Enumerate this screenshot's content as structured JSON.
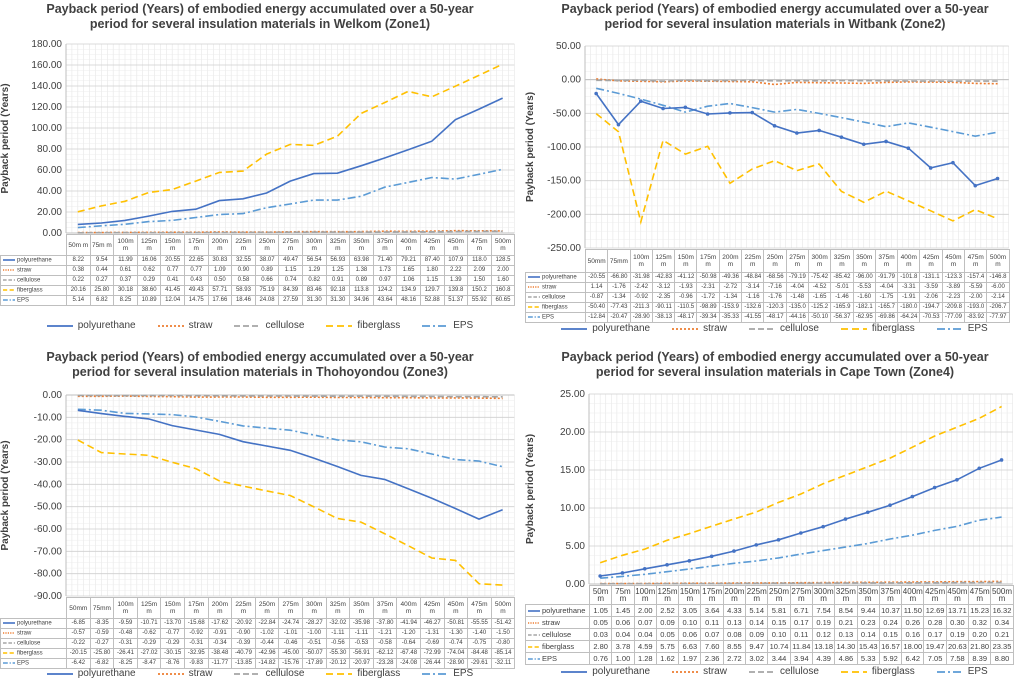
{
  "colors": {
    "polyurethane": "#4472c4",
    "straw": "#ed7d31",
    "cellulose": "#a5a5a5",
    "fiberglass": "#ffc000",
    "EPS": "#5b9bd5"
  },
  "charts": [
    {
      "title": "Payback period (Years) of embodied energy accumulated over a 50-year period for several insulation materials in Welkom (Zone1)",
      "ylabel": "Payback period (Years)",
      "ylim": [
        0,
        180
      ],
      "ticks": [
        "0.00",
        "20.00",
        "40.00",
        "60.00",
        "80.00",
        "100.00",
        "120.00",
        "140.00",
        "160.00",
        "180.00"
      ],
      "categories": [
        "50m m",
        "75m m",
        "100m m",
        "125m m",
        "150m m",
        "175m m",
        "200m m",
        "225m m",
        "250m m",
        "275m m",
        "300m m",
        "325m m",
        "350m m",
        "375m m",
        "400m m",
        "425m m",
        "450m m",
        "475m m",
        "500m m"
      ],
      "series": [
        {
          "name": "polyurethane",
          "dash": "",
          "vals": [
            "8.22",
            "9.54",
            "11.99",
            "16.06",
            "20.55",
            "22.65",
            "30.83",
            "32.55",
            "38.07",
            "49.47",
            "56.54",
            "56.93",
            "63.98",
            "71.40",
            "79.21",
            "87.40",
            "107.9",
            "118.0",
            "128.5"
          ]
        },
        {
          "name": "straw",
          "dash": "2,2",
          "vals": [
            "0.38",
            "0.44",
            "0.61",
            "0.62",
            "0.77",
            "0.77",
            "1.09",
            "0.90",
            "0.89",
            "1.15",
            "1.29",
            "1.25",
            "1.38",
            "1.73",
            "1.65",
            "1.80",
            "2.22",
            "2.09",
            "2.00"
          ]
        },
        {
          "name": "cellulose",
          "dash": "6,3",
          "vals": [
            "0.22",
            "0.27",
            "0.37",
            "0.29",
            "0.41",
            "0.43",
            "0.50",
            "0.58",
            "0.66",
            "0.74",
            "0.82",
            "0.91",
            "0.89",
            "0.97",
            "1.06",
            "1.15",
            "1.39",
            "1.50",
            "1.60"
          ]
        },
        {
          "name": "fiberglass",
          "dash": "7,4",
          "vals": [
            "20.16",
            "25.80",
            "30.18",
            "38.60",
            "41.45",
            "49.43",
            "57.71",
            "58.93",
            "75.19",
            "84.39",
            "83.46",
            "92.18",
            "113.8",
            "124.2",
            "134.9",
            "129.7",
            "139.8",
            "150.2",
            "160.8"
          ]
        },
        {
          "name": "EPS",
          "dash": "8,3,2,3",
          "vals": [
            "5.14",
            "6.82",
            "8.25",
            "10.89",
            "12.04",
            "14.75",
            "17.66",
            "18.46",
            "24.08",
            "27.59",
            "31.30",
            "31.30",
            "34.96",
            "43.64",
            "48.16",
            "52.88",
            "51.37",
            "55.92",
            "60.65"
          ]
        }
      ]
    },
    {
      "title": "Payback period (Years) of embodied energy accumulated over a 50-year period for several insulation materials in Witbank (Zone2)",
      "ylabel": "Payback period (Years)",
      "ylim": [
        -250,
        50
      ],
      "ticks": [
        "-250.00",
        "-200.00",
        "-150.00",
        "-100.00",
        "-50.00",
        "0.00",
        "50.00"
      ],
      "categories": [
        "50mm",
        "75mm",
        "100m m",
        "125m m",
        "150m m",
        "175m m",
        "200m m",
        "225m m",
        "250m m",
        "275m m",
        "300m m",
        "325m m",
        "350m m",
        "375m m",
        "400m m",
        "425m m",
        "450m m",
        "475m m",
        "500m m"
      ],
      "series": [
        {
          "name": "polyurethane",
          "dash": "",
          "vals": [
            "-20.55",
            "-66.80",
            "-31.98",
            "-42.83",
            "-41.12",
            "-50.98",
            "-49.36",
            "-48.84",
            "-68.56",
            "-79.19",
            "-75.42",
            "-85.42",
            "-96.00",
            "-91.79",
            "-101.8",
            "-131.1",
            "-123.3",
            "-157.4",
            "-146.8"
          ]
        },
        {
          "name": "straw",
          "dash": "2,2",
          "vals": [
            "1.14",
            "-1.76",
            "-2.42",
            "-3.12",
            "-1.93",
            "-2.31",
            "-2.72",
            "-3.14",
            "-7.16",
            "-4.04",
            "-4.52",
            "-5.01",
            "-5.53",
            "-4.04",
            "-3.31",
            "-3.59",
            "-3.89",
            "-5.59",
            "-6.00"
          ]
        },
        {
          "name": "cellulose",
          "dash": "6,3",
          "vals": [
            "-0.87",
            "-1.34",
            "-0.92",
            "-2.35",
            "-0.96",
            "-1.72",
            "-1.34",
            "-1.16",
            "-1.76",
            "-1.48",
            "-1.65",
            "-1.46",
            "-1.60",
            "-1.75",
            "-1.91",
            "-2.06",
            "-2.23",
            "-2.00",
            "-2.14"
          ]
        },
        {
          "name": "fiberglass",
          "dash": "7,4",
          "vals": [
            "-50.40",
            "-77.43",
            "-211.3",
            "-90.11",
            "-110.5",
            "-98.89",
            "-153.9",
            "-132.6",
            "-120.3",
            "-135.0",
            "-125.2",
            "-165.9",
            "-182.1",
            "-165.7",
            "-180.0",
            "-194.7",
            "-209.8",
            "-193.0",
            "-206.7"
          ]
        },
        {
          "name": "EPS",
          "dash": "8,3,2,3",
          "vals": [
            "-12.84",
            "-20.47",
            "-28.90",
            "-38.13",
            "-48.17",
            "-39.34",
            "-35.33",
            "-41.55",
            "-48.17",
            "-44.16",
            "-50.10",
            "-56.37",
            "-62.95",
            "-69.86",
            "-64.24",
            "-70.53",
            "-77.09",
            "-83.92",
            "-77.97"
          ]
        }
      ]
    },
    {
      "title": "Payback period (Years) of embodied energy accumulated over a 50-year period for several insulation materials in Thohoyondou (Zone3)",
      "ylabel": "Payback period (Years)",
      "ylim": [
        -90,
        0
      ],
      "ticks": [
        "-90.00",
        "-80.00",
        "-70.00",
        "-60.00",
        "-50.00",
        "-40.00",
        "-30.00",
        "-20.00",
        "-10.00",
        "0.00"
      ],
      "categories": [
        "50mm",
        "75mm",
        "100m m",
        "125m m",
        "150m m",
        "175m m",
        "200m m",
        "225m m",
        "250m m",
        "275m m",
        "300m m",
        "325m m",
        "350m m",
        "375m m",
        "400m m",
        "425m m",
        "450m m",
        "475m m",
        "500m m"
      ],
      "series": [
        {
          "name": "polyurethane",
          "dash": "",
          "vals": [
            "-6.85",
            "-8.35",
            "-9.59",
            "-10.71",
            "-13.70",
            "-15.68",
            "-17.62",
            "-20.92",
            "-22.84",
            "-24.74",
            "-28.27",
            "-32.02",
            "-35.98",
            "-37.80",
            "-41.94",
            "-46.27",
            "-50.81",
            "-55.55",
            "-51.42"
          ]
        },
        {
          "name": "straw",
          "dash": "2,2",
          "vals": [
            "-0.57",
            "-0.59",
            "-0.48",
            "-0.62",
            "-0.77",
            "-0.92",
            "-0.91",
            "-0.90",
            "-1.02",
            "-1.01",
            "-1.00",
            "-1.11",
            "-1.11",
            "-1.21",
            "-1.20",
            "-1.31",
            "-1.30",
            "-1.40",
            "-1.50"
          ]
        },
        {
          "name": "cellulose",
          "dash": "6,3",
          "vals": [
            "-0.22",
            "-0.27",
            "-0.31",
            "-0.29",
            "-0.29",
            "-0.31",
            "-0.34",
            "-0.39",
            "-0.44",
            "-0.46",
            "-0.51",
            "-0.56",
            "-0.53",
            "-0.58",
            "-0.64",
            "-0.69",
            "-0.74",
            "-0.75",
            "-0.80"
          ]
        },
        {
          "name": "fiberglass",
          "dash": "7,4",
          "vals": [
            "-20.15",
            "-25.80",
            "-26.41",
            "-27.02",
            "-30.15",
            "-32.95",
            "-38.48",
            "-40.79",
            "-42.96",
            "-45.00",
            "-50.07",
            "-55.30",
            "-56.91",
            "-62.12",
            "-67.48",
            "-72.99",
            "-74.04",
            "-84.48",
            "-85.14"
          ]
        },
        {
          "name": "EPS",
          "dash": "8,3,2,3",
          "vals": [
            "-6.42",
            "-6.82",
            "-8.25",
            "-8.47",
            "-8.76",
            "-9.83",
            "-11.77",
            "-13.85",
            "-14.82",
            "-15.76",
            "-17.89",
            "-20.12",
            "-20.97",
            "-23.28",
            "-24.08",
            "-26.44",
            "-28.90",
            "-29.61",
            "-32.11"
          ]
        }
      ]
    },
    {
      "title": "Payback period (Years) of embodied energy accumulated over a 50-year period for several insulation materials in Cape Town (Zone4)",
      "ylabel": "Payback period (Years)",
      "ylim": [
        0,
        25
      ],
      "ticks": [
        "0.00",
        "5.00",
        "10.00",
        "15.00",
        "20.00",
        "25.00"
      ],
      "categories": [
        "50m m",
        "75m m",
        "100m m",
        "125m m",
        "150m m",
        "175m m",
        "200m m",
        "225m m",
        "250m m",
        "275m m",
        "300m m",
        "325m m",
        "350m m",
        "375m m",
        "400m m",
        "425m m",
        "450m m",
        "475m m",
        "500m m"
      ],
      "series": [
        {
          "name": "polyurethane",
          "dash": "",
          "vals": [
            "1.05",
            "1.45",
            "2.00",
            "2.52",
            "3.05",
            "3.64",
            "4.33",
            "5.14",
            "5.81",
            "6.71",
            "7.54",
            "8.54",
            "9.44",
            "10.37",
            "11.50",
            "12.69",
            "13.71",
            "15.23",
            "16.32"
          ]
        },
        {
          "name": "straw",
          "dash": "2,2",
          "vals": [
            "0.05",
            "0.06",
            "0.07",
            "0.09",
            "0.10",
            "0.11",
            "0.13",
            "0.14",
            "0.15",
            "0.17",
            "0.19",
            "0.21",
            "0.23",
            "0.24",
            "0.26",
            "0.28",
            "0.30",
            "0.32",
            "0.34"
          ]
        },
        {
          "name": "cellulose",
          "dash": "6,3",
          "vals": [
            "0.03",
            "0.04",
            "0.04",
            "0.05",
            "0.06",
            "0.07",
            "0.08",
            "0.09",
            "0.10",
            "0.11",
            "0.12",
            "0.13",
            "0.14",
            "0.15",
            "0.16",
            "0.17",
            "0.19",
            "0.20",
            "0.21"
          ]
        },
        {
          "name": "fiberglass",
          "dash": "7,4",
          "vals": [
            "2.80",
            "3.78",
            "4.59",
            "5.75",
            "6.63",
            "7.60",
            "8.55",
            "9.47",
            "10.74",
            "11.84",
            "13.18",
            "14.30",
            "15.43",
            "16.57",
            "18.00",
            "19.47",
            "20.63",
            "21.80",
            "23.35"
          ]
        },
        {
          "name": "EPS",
          "dash": "8,3,2,3",
          "vals": [
            "0.76",
            "1.00",
            "1.28",
            "1.62",
            "1.97",
            "2.36",
            "2.72",
            "3.02",
            "3.44",
            "3.94",
            "4.39",
            "4.86",
            "5.33",
            "5.92",
            "6.42",
            "7.05",
            "7.58",
            "8.39",
            "8.80"
          ]
        }
      ]
    }
  ],
  "chart_data": [
    {
      "type": "line",
      "title": "Payback period (Years) of embodied energy accumulated over a 50-year period for several insulation materials in Welkom (Zone1)",
      "ylabel": "Payback period (Years)",
      "xlabel": "",
      "ylim": [
        0,
        180
      ],
      "series_ref": "charts.0"
    },
    {
      "type": "line",
      "title": "Payback period (Years) of embodied energy accumulated over a 50-year period for several insulation materials in Witbank (Zone2)",
      "ylabel": "Payback period (Years)",
      "xlabel": "",
      "ylim": [
        -250,
        50
      ],
      "series_ref": "charts.1"
    },
    {
      "type": "line",
      "title": "Payback period (Years) of embodied energy accumulated over a 50-year period for several insulation materials in Thohoyondou (Zone3)",
      "ylabel": "Payback period (Years)",
      "xlabel": "",
      "ylim": [
        -90,
        0
      ],
      "series_ref": "charts.2"
    },
    {
      "type": "line",
      "title": "Payback period (Years) of embodied energy accumulated over a 50-year period for several insulation materials in Cape Town (Zone4)",
      "ylabel": "Payback period (Years)",
      "xlabel": "",
      "ylim": [
        0,
        25
      ],
      "series_ref": "charts.3"
    }
  ]
}
